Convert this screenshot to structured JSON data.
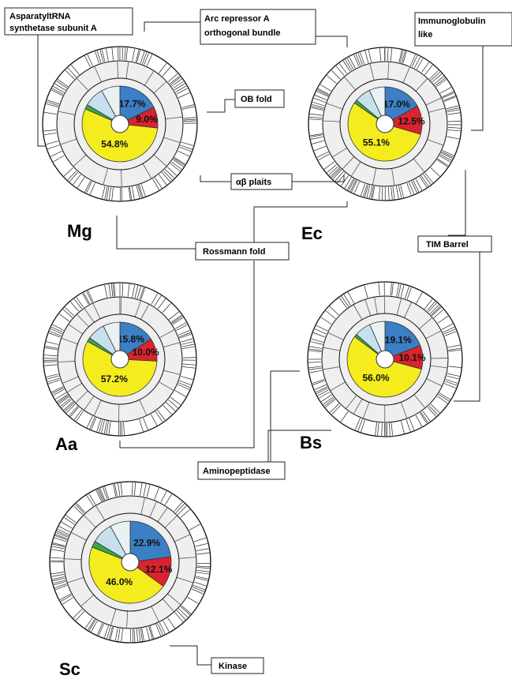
{
  "chart_data": {
    "type": "pie",
    "colors": {
      "blue": "#3b7fc4",
      "red": "#d9232e",
      "yellow": "#f5ec1e",
      "green": "#3aa64a",
      "lightblue": "#c7e0ee",
      "pale": "#e9f1f3",
      "ring": "#efefef"
    },
    "charts": [
      {
        "organism": "Mg",
        "slices": [
          {
            "color": "blue",
            "value": 17.7,
            "label": "17.7%"
          },
          {
            "color": "red",
            "value": 9.0,
            "label": "9.0%"
          },
          {
            "color": "yellow",
            "value": 54.8,
            "label": "54.8%"
          },
          {
            "color": "green",
            "value": 2.0
          },
          {
            "color": "lightblue",
            "value": 8.5
          },
          {
            "color": "pale",
            "value": 8.0
          }
        ]
      },
      {
        "organism": "Ec",
        "slices": [
          {
            "color": "blue",
            "value": 17.0,
            "label": "17.0%"
          },
          {
            "color": "red",
            "value": 12.5,
            "label": "12.5%"
          },
          {
            "color": "yellow",
            "value": 55.1,
            "label": "55.1%"
          },
          {
            "color": "green",
            "value": 1.5
          },
          {
            "color": "lightblue",
            "value": 7.0
          },
          {
            "color": "pale",
            "value": 6.9
          }
        ]
      },
      {
        "organism": "Aa",
        "slices": [
          {
            "color": "blue",
            "value": 15.8,
            "label": "15.8%"
          },
          {
            "color": "red",
            "value": 10.0,
            "label": "10.0%"
          },
          {
            "color": "yellow",
            "value": 57.2,
            "label": "57.2%"
          },
          {
            "color": "green",
            "value": 1.8
          },
          {
            "color": "lightblue",
            "value": 7.8
          },
          {
            "color": "pale",
            "value": 7.4
          }
        ]
      },
      {
        "organism": "Bs",
        "slices": [
          {
            "color": "blue",
            "value": 19.1,
            "label": "19.1%"
          },
          {
            "color": "red",
            "value": 10.1,
            "label": "10.1%"
          },
          {
            "color": "yellow",
            "value": 56.0,
            "label": "56.0%"
          },
          {
            "color": "green",
            "value": 1.2
          },
          {
            "color": "lightblue",
            "value": 7.0
          },
          {
            "color": "pale",
            "value": 6.6
          }
        ]
      },
      {
        "organism": "Sc",
        "slices": [
          {
            "color": "blue",
            "value": 22.9,
            "label": "22.9%"
          },
          {
            "color": "red",
            "value": 12.1,
            "label": "12.1%"
          },
          {
            "color": "yellow",
            "value": 46.0,
            "label": "46.0%"
          },
          {
            "color": "green",
            "value": 2.5
          },
          {
            "color": "lightblue",
            "value": 8.5
          },
          {
            "color": "pale",
            "value": 8.0
          }
        ]
      }
    ],
    "annotations": {
      "aspartyl": [
        "AsparatyltRNA",
        "synthetase subunit A"
      ],
      "arc": [
        "Arc repressor  A",
        "orthogonal bundle"
      ],
      "immuno": [
        "Immunoglobulin",
        "like"
      ],
      "ob": "OB fold",
      "ab": "αβ plaits",
      "tim": "TIM Barrel",
      "ross": "Rossmann fold",
      "amino": "Aminopeptidase",
      "kinase": "Kinase"
    }
  }
}
